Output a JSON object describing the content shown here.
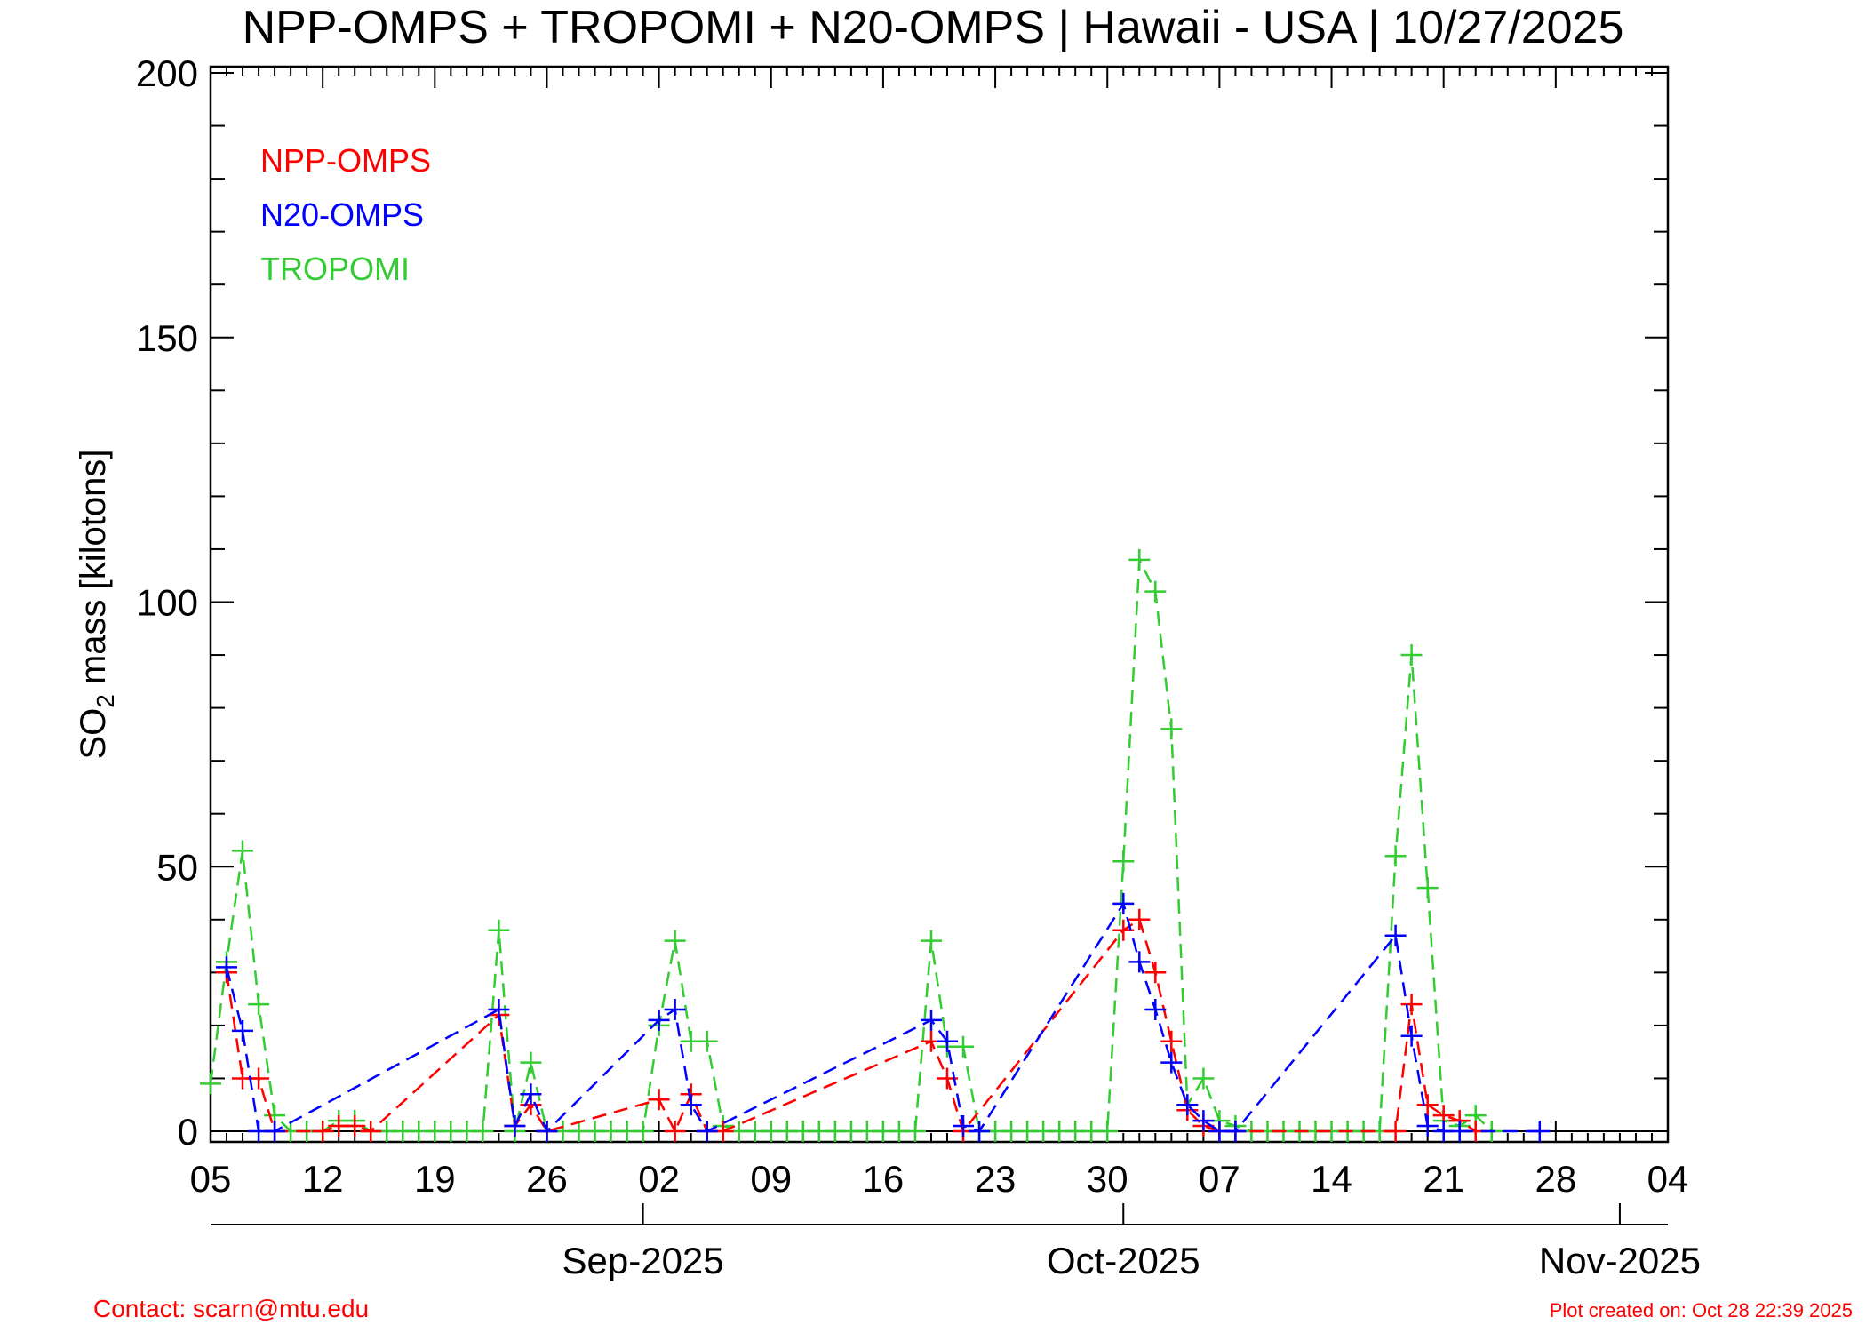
{
  "title": "NPP-OMPS + TROPOMI + N20-OMPS | Hawaii - USA | 10/27/2025",
  "footer": {
    "contact": "Contact: scarn@mtu.edu",
    "created": "Plot created on: Oct 28 22:39 2025"
  },
  "colors": {
    "NPP-OMPS": "#ff0000",
    "N20-OMPS": "#0000ff",
    "TROPOMI": "#33cc33",
    "footer": "#ff0000"
  },
  "chart_data": {
    "type": "line",
    "line_style": "dashed",
    "marker": "plus",
    "ylabel_main": "SO",
    "ylabel_sub": "2",
    "ylabel_rest": " mass [kilotons]",
    "ylim": [
      0,
      200
    ],
    "xlim": [
      "2025-08-05",
      "2025-11-04"
    ],
    "yticks": [
      0,
      50,
      100,
      150,
      200
    ],
    "xticks": [
      {
        "date": "2025-08-05",
        "label": "05"
      },
      {
        "date": "2025-08-12",
        "label": "12"
      },
      {
        "date": "2025-08-19",
        "label": "19"
      },
      {
        "date": "2025-08-26",
        "label": "26"
      },
      {
        "date": "2025-09-02",
        "label": "02"
      },
      {
        "date": "2025-09-09",
        "label": "09"
      },
      {
        "date": "2025-09-16",
        "label": "16"
      },
      {
        "date": "2025-09-23",
        "label": "23"
      },
      {
        "date": "2025-09-30",
        "label": "30"
      },
      {
        "date": "2025-10-07",
        "label": "07"
      },
      {
        "date": "2025-10-14",
        "label": "14"
      },
      {
        "date": "2025-10-21",
        "label": "21"
      },
      {
        "date": "2025-10-28",
        "label": "28"
      },
      {
        "date": "2025-11-04",
        "label": "04"
      }
    ],
    "months": [
      {
        "date": "2025-09-01",
        "label": "Sep-2025"
      },
      {
        "date": "2025-10-01",
        "label": "Oct-2025"
      },
      {
        "date": "2025-11-01",
        "label": "Nov-2025"
      }
    ],
    "legend_position": "top-left",
    "series": [
      {
        "name": "NPP-OMPS",
        "points": [
          [
            "2025-08-06",
            30
          ],
          [
            "2025-08-07",
            10
          ],
          [
            "2025-08-08",
            10
          ],
          [
            "2025-08-09",
            0
          ],
          [
            "2025-08-12",
            0
          ],
          [
            "2025-08-13",
            1
          ],
          [
            "2025-08-14",
            1
          ],
          [
            "2025-08-15",
            0
          ],
          [
            "2025-08-23",
            22
          ],
          [
            "2025-08-24",
            1
          ],
          [
            "2025-08-25",
            5
          ],
          [
            "2025-08-26",
            0
          ],
          [
            "2025-09-02",
            6
          ],
          [
            "2025-09-03",
            0
          ],
          [
            "2025-09-04",
            7
          ],
          [
            "2025-09-05",
            0
          ],
          [
            "2025-09-06",
            0
          ],
          [
            "2025-09-19",
            17
          ],
          [
            "2025-09-20",
            10
          ],
          [
            "2025-09-21",
            0
          ],
          [
            "2025-10-01",
            38
          ],
          [
            "2025-10-02",
            40
          ],
          [
            "2025-10-03",
            30
          ],
          [
            "2025-10-04",
            17
          ],
          [
            "2025-10-05",
            4
          ],
          [
            "2025-10-06",
            1
          ],
          [
            "2025-10-07",
            0
          ],
          [
            "2025-10-08",
            0
          ],
          [
            "2025-10-18",
            0
          ],
          [
            "2025-10-19",
            24
          ],
          [
            "2025-10-20",
            5
          ],
          [
            "2025-10-21",
            3
          ],
          [
            "2025-10-22",
            2
          ],
          [
            "2025-10-23",
            0
          ]
        ]
      },
      {
        "name": "N20-OMPS",
        "points": [
          [
            "2025-08-06",
            31
          ],
          [
            "2025-08-07",
            19
          ],
          [
            "2025-08-08",
            0
          ],
          [
            "2025-08-09",
            0
          ],
          [
            "2025-08-23",
            23
          ],
          [
            "2025-08-24",
            1
          ],
          [
            "2025-08-25",
            7
          ],
          [
            "2025-08-26",
            0
          ],
          [
            "2025-09-02",
            21
          ],
          [
            "2025-09-03",
            23
          ],
          [
            "2025-09-04",
            5
          ],
          [
            "2025-09-05",
            0
          ],
          [
            "2025-09-19",
            21
          ],
          [
            "2025-09-20",
            17
          ],
          [
            "2025-09-21",
            1
          ],
          [
            "2025-09-22",
            0
          ],
          [
            "2025-10-01",
            43
          ],
          [
            "2025-10-02",
            32
          ],
          [
            "2025-10-03",
            23
          ],
          [
            "2025-10-04",
            13
          ],
          [
            "2025-10-05",
            5
          ],
          [
            "2025-10-06",
            2
          ],
          [
            "2025-10-07",
            0
          ],
          [
            "2025-10-08",
            0
          ],
          [
            "2025-10-18",
            37
          ],
          [
            "2025-10-19",
            18
          ],
          [
            "2025-10-20",
            1
          ],
          [
            "2025-10-21",
            0
          ],
          [
            "2025-10-22",
            0
          ],
          [
            "2025-10-27",
            0
          ]
        ]
      },
      {
        "name": "TROPOMI",
        "points": [
          [
            "2025-08-05",
            9
          ],
          [
            "2025-08-06",
            32
          ],
          [
            "2025-08-07",
            53
          ],
          [
            "2025-08-08",
            24
          ],
          [
            "2025-08-09",
            3
          ],
          [
            "2025-08-10",
            0
          ],
          [
            "2025-08-11",
            0
          ],
          [
            "2025-08-12",
            0
          ],
          [
            "2025-08-13",
            2
          ],
          [
            "2025-08-14",
            2
          ],
          [
            "2025-08-15",
            0
          ],
          [
            "2025-08-16",
            0
          ],
          [
            "2025-08-17",
            0
          ],
          [
            "2025-08-18",
            0
          ],
          [
            "2025-08-19",
            0
          ],
          [
            "2025-08-20",
            0
          ],
          [
            "2025-08-21",
            0
          ],
          [
            "2025-08-22",
            0
          ],
          [
            "2025-08-23",
            38
          ],
          [
            "2025-08-24",
            0
          ],
          [
            "2025-08-25",
            13
          ],
          [
            "2025-08-26",
            0
          ],
          [
            "2025-08-27",
            0
          ],
          [
            "2025-08-28",
            0
          ],
          [
            "2025-08-29",
            0
          ],
          [
            "2025-08-30",
            0
          ],
          [
            "2025-08-31",
            0
          ],
          [
            "2025-09-01",
            0
          ],
          [
            "2025-09-02",
            20
          ],
          [
            "2025-09-03",
            36
          ],
          [
            "2025-09-04",
            17
          ],
          [
            "2025-09-05",
            17
          ],
          [
            "2025-09-06",
            1
          ],
          [
            "2025-09-07",
            0
          ],
          [
            "2025-09-08",
            0
          ],
          [
            "2025-09-09",
            0
          ],
          [
            "2025-09-10",
            0
          ],
          [
            "2025-09-11",
            0
          ],
          [
            "2025-09-12",
            0
          ],
          [
            "2025-09-13",
            0
          ],
          [
            "2025-09-14",
            0
          ],
          [
            "2025-09-15",
            0
          ],
          [
            "2025-09-16",
            0
          ],
          [
            "2025-09-17",
            0
          ],
          [
            "2025-09-18",
            0
          ],
          [
            "2025-09-19",
            36
          ],
          [
            "2025-09-20",
            16
          ],
          [
            "2025-09-21",
            16
          ],
          [
            "2025-09-22",
            0
          ],
          [
            "2025-09-23",
            0
          ],
          [
            "2025-09-24",
            0
          ],
          [
            "2025-09-25",
            0
          ],
          [
            "2025-09-26",
            0
          ],
          [
            "2025-09-27",
            0
          ],
          [
            "2025-09-28",
            0
          ],
          [
            "2025-09-29",
            0
          ],
          [
            "2025-09-30",
            0
          ],
          [
            "2025-10-01",
            51
          ],
          [
            "2025-10-02",
            108
          ],
          [
            "2025-10-03",
            102
          ],
          [
            "2025-10-04",
            76
          ],
          [
            "2025-10-05",
            5
          ],
          [
            "2025-10-06",
            10
          ],
          [
            "2025-10-07",
            2
          ],
          [
            "2025-10-08",
            1
          ],
          [
            "2025-10-09",
            0
          ],
          [
            "2025-10-10",
            0
          ],
          [
            "2025-10-11",
            0
          ],
          [
            "2025-10-12",
            0
          ],
          [
            "2025-10-13",
            0
          ],
          [
            "2025-10-14",
            0
          ],
          [
            "2025-10-15",
            0
          ],
          [
            "2025-10-16",
            0
          ],
          [
            "2025-10-17",
            0
          ],
          [
            "2025-10-18",
            52
          ],
          [
            "2025-10-19",
            90
          ],
          [
            "2025-10-20",
            46
          ],
          [
            "2025-10-21",
            2
          ],
          [
            "2025-10-22",
            1
          ],
          [
            "2025-10-23",
            3
          ],
          [
            "2025-10-24",
            0
          ]
        ]
      }
    ]
  }
}
